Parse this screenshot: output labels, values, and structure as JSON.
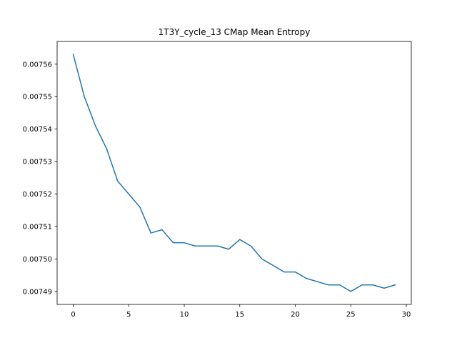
{
  "chart_data": {
    "type": "line",
    "title": "1T3Y_cycle_13 CMap Mean Entropy",
    "xlabel": "",
    "ylabel": "",
    "xlim": [
      -1.45,
      30.45
    ],
    "ylim": [
      0.007486,
      0.007567
    ],
    "x_ticks": [
      0,
      5,
      10,
      15,
      20,
      25,
      30
    ],
    "x_tick_labels": [
      "0",
      "5",
      "10",
      "15",
      "20",
      "25",
      "30"
    ],
    "y_ticks": [
      0.00749,
      0.0075,
      0.00751,
      0.00752,
      0.00753,
      0.00754,
      0.00755,
      0.00756
    ],
    "y_tick_labels": [
      "0.00749",
      "0.00750",
      "0.00751",
      "0.00752",
      "0.00753",
      "0.00754",
      "0.00755",
      "0.00756"
    ],
    "grid": false,
    "series": [
      {
        "color": "#1f77b4",
        "x": [
          0,
          1,
          2,
          3,
          4,
          5,
          6,
          7,
          8,
          9,
          10,
          11,
          12,
          13,
          14,
          15,
          16,
          17,
          18,
          19,
          20,
          21,
          22,
          23,
          24,
          25,
          26,
          27,
          28,
          29
        ],
        "values": [
          0.007563,
          0.00755,
          0.007541,
          0.007534,
          0.007524,
          0.00752,
          0.007516,
          0.007508,
          0.007509,
          0.007505,
          0.007505,
          0.007504,
          0.007504,
          0.007504,
          0.007503,
          0.007506,
          0.007504,
          0.0075,
          0.007498,
          0.007496,
          0.007496,
          0.007494,
          0.007493,
          0.007492,
          0.007492,
          0.00749,
          0.007492,
          0.007492,
          0.007491,
          0.007492
        ]
      }
    ]
  }
}
